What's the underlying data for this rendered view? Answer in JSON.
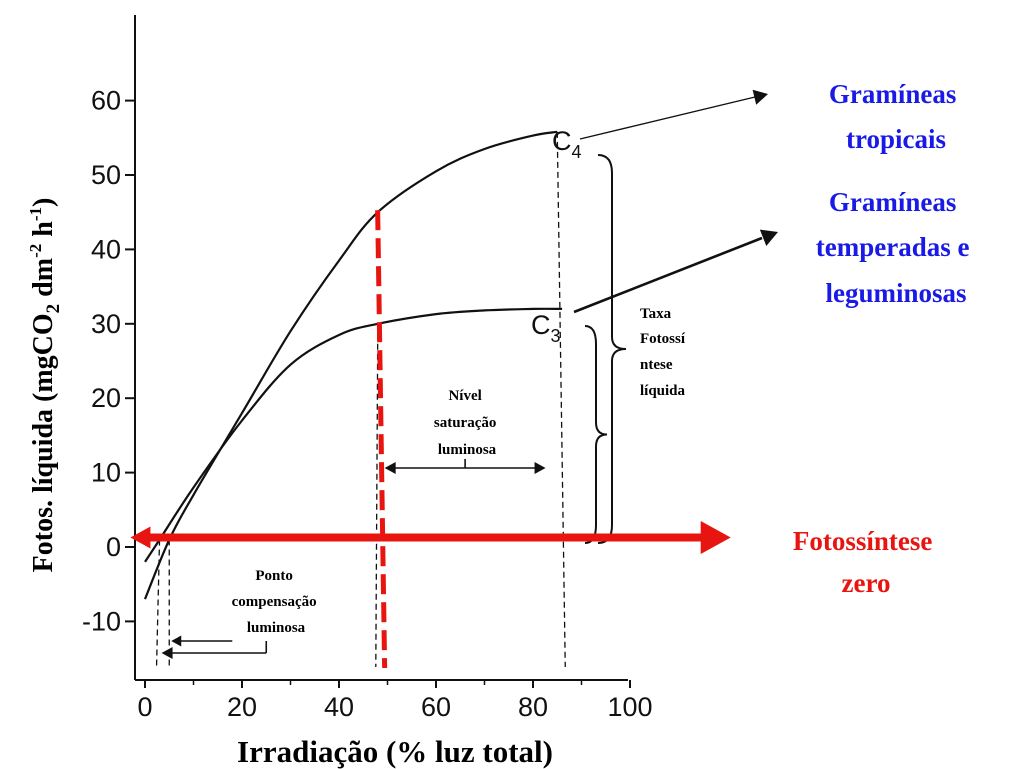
{
  "chart_data": {
    "type": "line",
    "xlabel": "Irradiação (% luz total)",
    "ylabel_parts": [
      "Fotos. líquida (mgCO",
      "2",
      " dm",
      "-2",
      " h",
      "-1",
      ")"
    ],
    "xlim": [
      0,
      100
    ],
    "ylim": [
      -15,
      65
    ],
    "x_ticks": [
      0,
      20,
      40,
      60,
      80,
      100
    ],
    "y_ticks": [
      -10,
      0,
      10,
      20,
      30,
      40,
      50,
      60
    ],
    "series": [
      {
        "name": "C4",
        "sub": "4",
        "x": [
          0,
          5,
          10,
          20,
          30,
          40,
          48,
          60,
          70,
          80,
          85
        ],
        "y": [
          -7,
          1,
          7,
          18,
          29,
          38.5,
          45,
          50.5,
          53.5,
          55.3,
          55.8
        ]
      },
      {
        "name": "C3",
        "sub": "3",
        "x": [
          0,
          3,
          10,
          20,
          30,
          40,
          48,
          60,
          70,
          80,
          86
        ],
        "y": [
          -2,
          1,
          8,
          17,
          24.5,
          28.5,
          30,
          31.3,
          31.8,
          32,
          32
        ]
      }
    ],
    "annotations": {
      "ponto_compensacao": [
        "Ponto",
        "compensação",
        "luminosa"
      ],
      "nivel_saturacao": [
        "Nível",
        "saturação",
        "luminosa"
      ],
      "taxa": [
        "Taxa",
        "Fotossí",
        "ntese",
        "líquida"
      ]
    },
    "right_labels": {
      "c4": [
        "Gramíneas",
        "tropicais"
      ],
      "c3": [
        "Gramíneas",
        "temperadas e",
        "leguminosas"
      ],
      "zero": [
        "Fotossíntese",
        "zero"
      ]
    },
    "marker_x": 49,
    "zero_arrow": {
      "x_start": -3,
      "x_end": 122,
      "y": 1
    },
    "colors": {
      "ink": "#111111",
      "red": "#e8140f",
      "blue": "#1a1ae6",
      "zero_red": "#e8140f"
    }
  }
}
